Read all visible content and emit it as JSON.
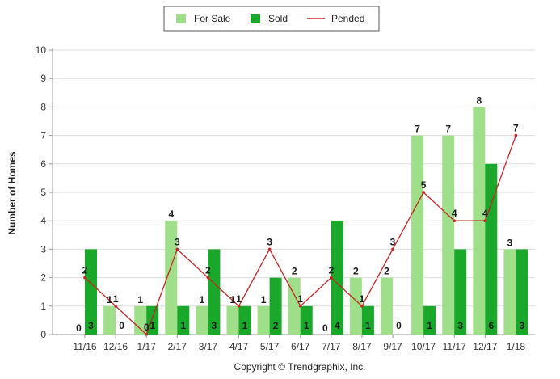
{
  "chart_data": {
    "type": "bar",
    "title": "",
    "xlabel": "",
    "ylabel": "Number of Homes",
    "ylim": [
      0,
      10
    ],
    "yticks": [
      0,
      1,
      2,
      3,
      4,
      5,
      6,
      7,
      8,
      9,
      10
    ],
    "grid": true,
    "legend_position": "top-center",
    "categories": [
      "11/16",
      "12/16",
      "1/17",
      "2/17",
      "3/17",
      "4/17",
      "5/17",
      "6/17",
      "7/17",
      "8/17",
      "9/17",
      "10/17",
      "11/17",
      "12/17",
      "1/18"
    ],
    "series": [
      {
        "name": "For Sale",
        "kind": "bar",
        "color": "#9fdf8a",
        "values": [
          0,
          1,
          1,
          4,
          1,
          1,
          1,
          2,
          0,
          2,
          2,
          7,
          7,
          8,
          3
        ]
      },
      {
        "name": "Sold",
        "kind": "bar",
        "color": "#1aa82a",
        "values": [
          3,
          0,
          1,
          1,
          3,
          1,
          2,
          1,
          4,
          1,
          0,
          1,
          3,
          6,
          3
        ]
      },
      {
        "name": "Pended",
        "kind": "line",
        "color": "#cc2222",
        "values": [
          2,
          1,
          0,
          3,
          2,
          1,
          3,
          1,
          2,
          1,
          3,
          5,
          4,
          4,
          7
        ]
      }
    ]
  },
  "footer": {
    "copyright": "Copyright © Trendgraphix, Inc."
  }
}
